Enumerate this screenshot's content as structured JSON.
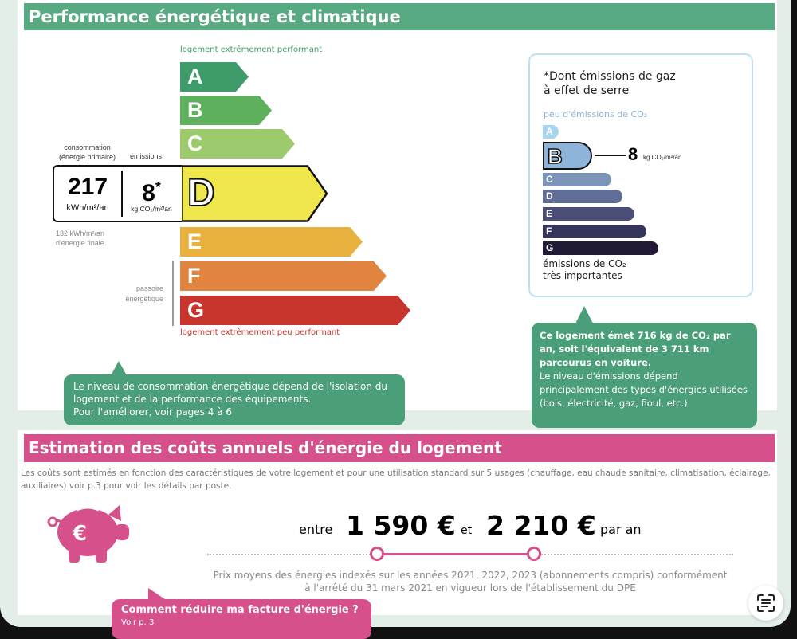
{
  "performance": {
    "title": "Performance énergétique et climatique",
    "top_label": "logement extrêmement performant",
    "bottom_label": "logement extrêmement peu performant",
    "classes": [
      {
        "letter": "A",
        "color": "#3e9c6b"
      },
      {
        "letter": "B",
        "color": "#5fb05c"
      },
      {
        "letter": "C",
        "color": "#9dca6c"
      },
      {
        "letter": "D",
        "color": "#efe64c"
      },
      {
        "letter": "E",
        "color": "#e8b13e"
      },
      {
        "letter": "F",
        "color": "#e1843f"
      },
      {
        "letter": "G",
        "color": "#c8352d"
      }
    ],
    "current_class": "D",
    "consumption_label": "consommation\n(énergie primaire)",
    "emissions_label": "émissions",
    "consumption_value": "217",
    "consumption_unit": "kWh/m²/an",
    "emissions_value": "8",
    "emissions_star": "*",
    "emissions_unit": "kg CO₂/m²/an",
    "final_energy": "132 kWh/m²/an\nd'énergie finale",
    "passoire_label": "passoire\nénergétique",
    "callout": "Le niveau de consommation énergétique dépend de l'isolation du logement et de la performance des équipements.",
    "callout_link": "Pour l'améliorer, voir pages 4 à 6"
  },
  "ges": {
    "title": "*Dont émissions de gaz\nà effet de serre",
    "top_label": "peu d'émissions de CO₂",
    "bottom_label": "émissions de CO₂\ntrès importantes",
    "classes": [
      {
        "letter": "A",
        "color": "#a8d4ef"
      },
      {
        "letter": "B",
        "color": "#8fb4d9"
      },
      {
        "letter": "C",
        "color": "#7d94b9"
      },
      {
        "letter": "D",
        "color": "#5f6d97"
      },
      {
        "letter": "E",
        "color": "#4b4f78"
      },
      {
        "letter": "F",
        "color": "#35345a"
      },
      {
        "letter": "G",
        "color": "#221a36"
      }
    ],
    "current_class": "B",
    "value": "8",
    "unit": "kg CO₂/m²/an",
    "callout_bold": "Ce logement émet 716 kg de CO₂ par an, soit l'équivalent de 3 711 km parcourus en voiture.",
    "callout_text": "Le niveau d'émissions dépend principalement des types d'énergies utilisées (bois, électricité, gaz, fioul, etc.)"
  },
  "costs": {
    "title": "Estimation des coûts annuels d'énergie du logement",
    "description": "Les coûts sont estimés en fonction des caractéristiques de votre logement et pour une utilisation standard sur 5 usages (chauffage, eau chaude sanitaire, climatisation, éclairage, auxiliaires) voir p.3 pour voir les détails par poste.",
    "entre": "entre",
    "min": "1 590 €",
    "et": "et",
    "max": "2 210 €",
    "par_an": "par an",
    "footnote": "Prix moyens des énergies indexés sur les années 2021, 2022, 2023 (abonnements compris) conformément\nà l'arrêté du 31 mars 2021 en vigueur lors de l'établissement du DPE",
    "callout_title": "Comment réduire ma facture d'énergie ?",
    "callout_sub": "Voir p. 3",
    "icon": "piggy-bank-euro-icon"
  },
  "colors": {
    "green": "#58aa83",
    "pink": "#d6518c",
    "callout_green": "#4a9e78"
  }
}
